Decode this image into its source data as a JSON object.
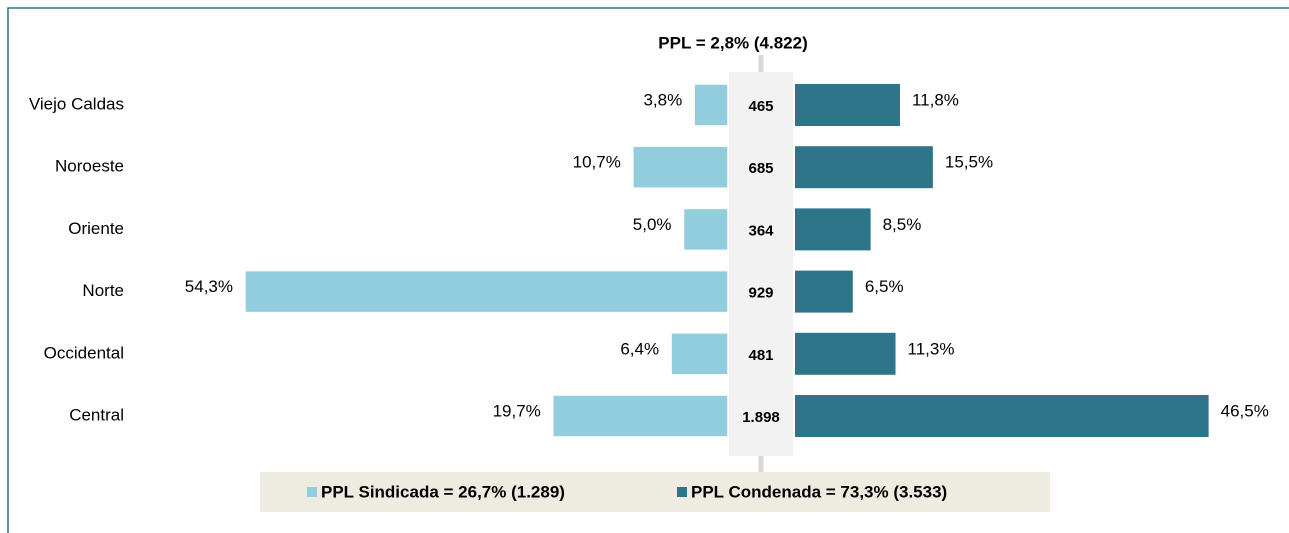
{
  "chart_data": {
    "type": "butterfly",
    "title": "PPL =  2,8% (4.822)",
    "categories": [
      "Viejo Caldas",
      "Noroeste",
      "Oriente",
      "Norte",
      "Occidental",
      "Central"
    ],
    "totals": [
      465,
      685,
      364,
      929,
      481,
      1898
    ],
    "total_labels": [
      "465",
      "685",
      "364",
      "929",
      "481",
      "1.898"
    ],
    "series": [
      {
        "name": "PPL Sindicada = 26,7% (1.289)",
        "color": "#92cddd",
        "side": "left",
        "values": [
          3.8,
          10.7,
          5.0,
          54.3,
          6.4,
          19.7
        ],
        "value_labels": [
          "3,8%",
          "10,7%",
          "5,0%",
          "54,3%",
          "6,4%",
          "19,7%"
        ]
      },
      {
        "name": "PPL Condenada = 73,3% (3.533)",
        "color": "#2e7589",
        "side": "right",
        "values": [
          11.8,
          15.5,
          8.5,
          6.5,
          11.3,
          46.5
        ],
        "value_labels": [
          "11,8%",
          "15,5%",
          "8,5%",
          "6,5%",
          "11,3%",
          "46,5%"
        ]
      }
    ]
  }
}
